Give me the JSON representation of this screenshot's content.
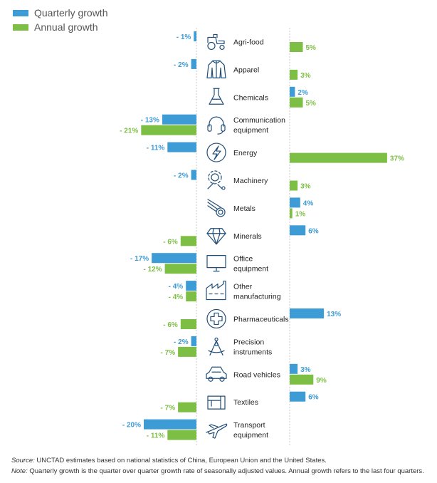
{
  "legend": [
    {
      "label": "Quarterly growth",
      "color": "#3d9bd6"
    },
    {
      "label": "Annual growth",
      "color": "#7dbf44"
    }
  ],
  "chart_data": {
    "type": "bar",
    "orientation": "horizontal",
    "grid": false,
    "legend_position": "top-left",
    "value_unit": "%",
    "series": [
      {
        "name": "Quarterly growth",
        "color": "#3d9bd6",
        "values": [
          -1,
          -2,
          2,
          -13,
          -11,
          -2,
          4,
          6,
          -17,
          -4,
          13,
          -2,
          3,
          6,
          -20
        ],
        "labels": [
          "- 1%",
          "- 2%",
          "2%",
          "- 13%",
          "- 11%",
          "- 2%",
          "4%",
          "6%",
          "- 17%",
          "- 4%",
          "13%",
          "- 2%",
          "3%",
          "6%",
          "- 20%"
        ]
      },
      {
        "name": "Annual growth",
        "color": "#7dbf44",
        "values": [
          5,
          3,
          5,
          -21,
          37,
          3,
          1,
          -6,
          -12,
          -4,
          -6,
          -7,
          9,
          -7,
          -11
        ],
        "labels": [
          "5%",
          "3%",
          "5%",
          "- 21%",
          "37%",
          "3%",
          "1%",
          "- 6%",
          "- 12%",
          "- 4%",
          "- 6%",
          "- 7%",
          "9%",
          "- 7%",
          "- 11%"
        ]
      }
    ],
    "categories": [
      {
        "lines": [
          "Agri-food"
        ],
        "icon": "tractor-icon"
      },
      {
        "lines": [
          "Apparel"
        ],
        "icon": "jacket-icon"
      },
      {
        "lines": [
          "Chemicals"
        ],
        "icon": "flask-icon"
      },
      {
        "lines": [
          "Communication",
          "equipment"
        ],
        "icon": "headset-icon"
      },
      {
        "lines": [
          "Energy"
        ],
        "icon": "lightning-icon"
      },
      {
        "lines": [
          "Machinery"
        ],
        "icon": "gear-wrench-icon"
      },
      {
        "lines": [
          "Metals"
        ],
        "icon": "metal-coil-icon"
      },
      {
        "lines": [
          "Minerals"
        ],
        "icon": "diamond-icon"
      },
      {
        "lines": [
          "Office",
          "equipment"
        ],
        "icon": "monitor-icon"
      },
      {
        "lines": [
          "Other",
          "manufacturing"
        ],
        "icon": "factory-icon"
      },
      {
        "lines": [
          "Pharmaceuticals"
        ],
        "icon": "medical-cross-icon"
      },
      {
        "lines": [
          "Precision",
          "instruments"
        ],
        "icon": "compass-icon"
      },
      {
        "lines": [
          "Road vehicles"
        ],
        "icon": "car-icon"
      },
      {
        "lines": [
          "Textiles"
        ],
        "icon": "sewing-machine-icon"
      },
      {
        "lines": [
          "Transport",
          "equipment"
        ],
        "icon": "airplane-icon"
      }
    ]
  },
  "notes": {
    "source_key": "Source:",
    "source_text": " UNCTAD estimates based on national statistics of China, European Union and the United States.",
    "note_key": "Note:",
    "note_text": " Quarterly growth is the quarter over quarter growth rate of seasonally adjusted values. Annual growth refers to the last four quarters."
  }
}
